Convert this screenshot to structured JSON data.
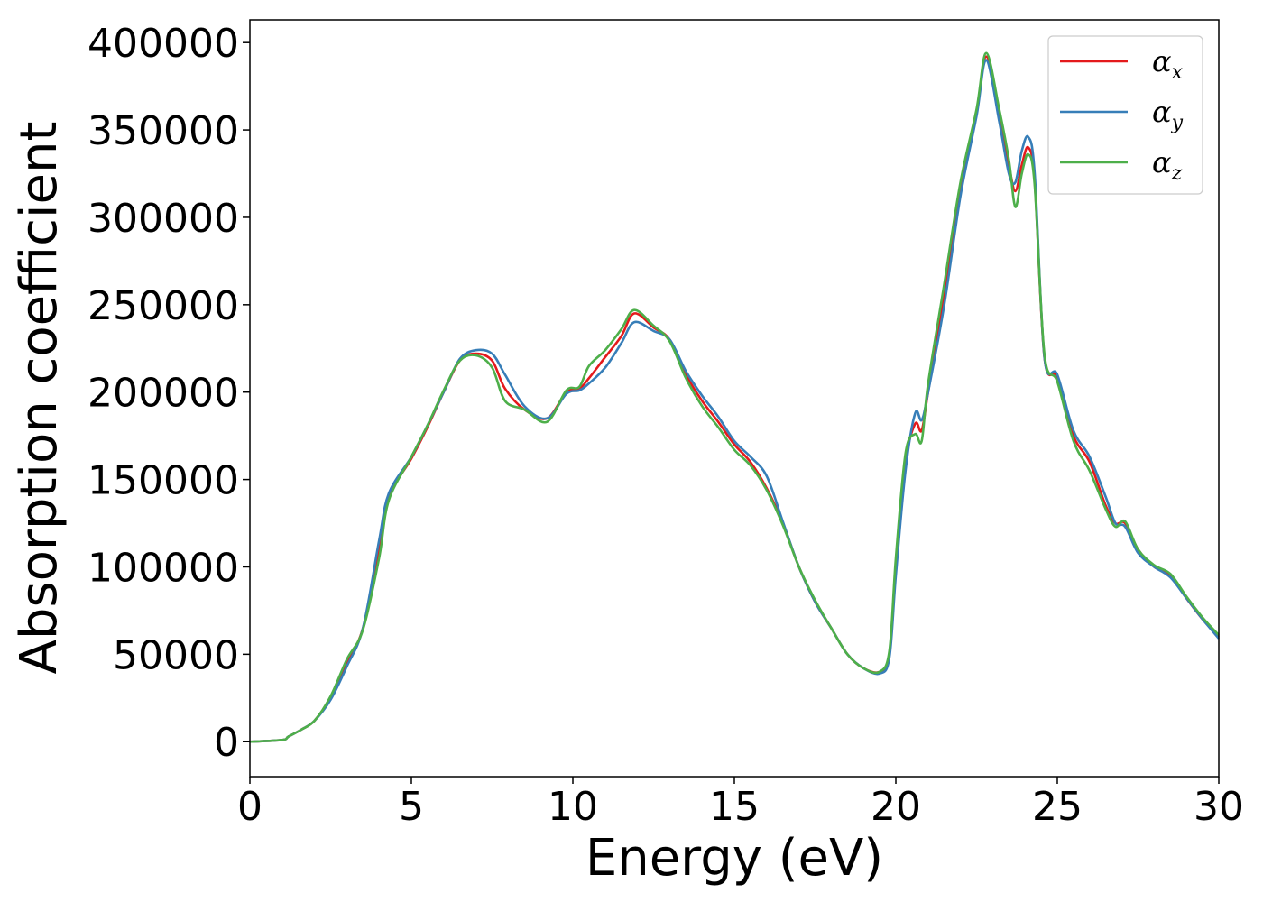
{
  "chart_data": {
    "type": "line",
    "title": "",
    "xlabel": "Energy (eV)",
    "ylabel": "Absorption coefficient",
    "xlim": [
      0,
      30
    ],
    "ylim": [
      -20000,
      413000
    ],
    "xticks": [
      0,
      5,
      10,
      15,
      20,
      25,
      30
    ],
    "yticks": [
      0,
      50000,
      100000,
      150000,
      200000,
      250000,
      300000,
      350000,
      400000
    ],
    "grid": false,
    "legend_position": "top-right",
    "series": [
      {
        "name": "α_x",
        "label_main": "α",
        "label_sub": "x",
        "color": "#e41a1c",
        "x": [
          0,
          1,
          1.2,
          1.6,
          2,
          2.5,
          3,
          3.5,
          4,
          4.3,
          5,
          5.5,
          6,
          6.5,
          7,
          7.5,
          7.9,
          8.5,
          9.2,
          9.8,
          10.2,
          10.5,
          11,
          11.5,
          11.9,
          12.5,
          13,
          13.5,
          14,
          14.5,
          15,
          15.5,
          16,
          16.5,
          17,
          17.5,
          18,
          18.5,
          19,
          19.5,
          19.8,
          20,
          20.3,
          20.6,
          20.8,
          21,
          21.5,
          22,
          22.5,
          22.8,
          23.2,
          23.5,
          23.7,
          23.9,
          24.1,
          24.3,
          24.6,
          25,
          25.5,
          26,
          26.5,
          26.8,
          27.1,
          27.5,
          28,
          28.5,
          29,
          29.5,
          30
        ],
        "y": [
          0,
          1000,
          3000,
          7000,
          12000,
          25000,
          45000,
          65000,
          110000,
          140000,
          162000,
          180000,
          200000,
          218000,
          222000,
          218000,
          202000,
          190000,
          185000,
          200000,
          202000,
          208000,
          220000,
          232000,
          245000,
          237000,
          230000,
          210000,
          195000,
          183000,
          170000,
          160000,
          145000,
          125000,
          100000,
          80000,
          65000,
          50000,
          42000,
          40000,
          50000,
          100000,
          160000,
          182000,
          178000,
          200000,
          255000,
          315000,
          360000,
          392000,
          360000,
          330000,
          315000,
          330000,
          340000,
          320000,
          220000,
          208000,
          175000,
          160000,
          135000,
          125000,
          125000,
          110000,
          100000,
          95000,
          82000,
          70000,
          60000
        ]
      },
      {
        "name": "α_y",
        "label_main": "α",
        "label_sub": "y",
        "color": "#377eb8",
        "x": [
          0,
          1,
          1.2,
          1.6,
          2,
          2.5,
          3,
          3.5,
          4,
          4.3,
          5,
          5.5,
          6,
          6.5,
          7,
          7.5,
          7.9,
          8.5,
          9.2,
          9.8,
          10.2,
          10.5,
          11,
          11.5,
          11.9,
          12.5,
          13,
          13.5,
          14,
          14.5,
          15,
          15.5,
          16,
          16.5,
          17,
          17.5,
          18,
          18.5,
          19,
          19.5,
          19.8,
          20,
          20.3,
          20.6,
          20.8,
          21,
          21.5,
          22,
          22.5,
          22.8,
          23.2,
          23.5,
          23.7,
          23.9,
          24.1,
          24.3,
          24.6,
          25,
          25.5,
          26,
          26.5,
          26.8,
          27.1,
          27.5,
          28,
          28.5,
          29,
          29.5,
          30
        ],
        "y": [
          0,
          1000,
          3000,
          7000,
          12000,
          24000,
          43000,
          65000,
          115000,
          142000,
          163000,
          181000,
          200000,
          219000,
          224000,
          222000,
          210000,
          192000,
          185000,
          199000,
          201000,
          205000,
          214000,
          228000,
          240000,
          235000,
          230000,
          212000,
          198000,
          186000,
          172000,
          163000,
          152000,
          126000,
          100000,
          80000,
          65000,
          50000,
          42000,
          39000,
          48000,
          95000,
          155000,
          188000,
          184000,
          200000,
          250000,
          312000,
          358000,
          390000,
          355000,
          325000,
          320000,
          338000,
          346000,
          325000,
          220000,
          210000,
          178000,
          163000,
          140000,
          125000,
          123000,
          108000,
          100000,
          94000,
          82000,
          70000,
          59000
        ]
      },
      {
        "name": "α_z",
        "label_main": "α",
        "label_sub": "z",
        "color": "#4daf4a",
        "x": [
          0,
          1,
          1.2,
          1.6,
          2,
          2.5,
          3,
          3.5,
          4,
          4.3,
          5,
          5.5,
          6,
          6.5,
          7,
          7.5,
          7.9,
          8.5,
          9.2,
          9.8,
          10.2,
          10.5,
          11,
          11.5,
          11.9,
          12.5,
          13,
          13.5,
          14,
          14.5,
          15,
          15.5,
          16,
          16.5,
          17,
          17.5,
          18,
          18.5,
          19,
          19.5,
          19.8,
          20,
          20.3,
          20.6,
          20.8,
          21,
          21.5,
          22,
          22.5,
          22.8,
          23.2,
          23.5,
          23.7,
          23.9,
          24.1,
          24.3,
          24.6,
          25,
          25.5,
          26,
          26.5,
          26.8,
          27.1,
          27.5,
          28,
          28.5,
          29,
          29.5,
          30
        ],
        "y": [
          0,
          1000,
          3000,
          7000,
          12000,
          26000,
          47000,
          64000,
          105000,
          138000,
          163000,
          181000,
          201000,
          218000,
          221000,
          214000,
          195000,
          190000,
          183000,
          201000,
          203000,
          215000,
          224000,
          236000,
          247000,
          238000,
          229000,
          208000,
          192000,
          180000,
          167000,
          158000,
          144000,
          124000,
          100000,
          81000,
          65000,
          50000,
          42000,
          40000,
          52000,
          105000,
          165000,
          176000,
          172000,
          205000,
          262000,
          320000,
          362000,
          394000,
          362000,
          333000,
          306000,
          325000,
          336000,
          318000,
          222000,
          206000,
          172000,
          155000,
          133000,
          123000,
          126000,
          110000,
          101000,
          96000,
          83000,
          71000,
          61000
        ]
      }
    ]
  }
}
